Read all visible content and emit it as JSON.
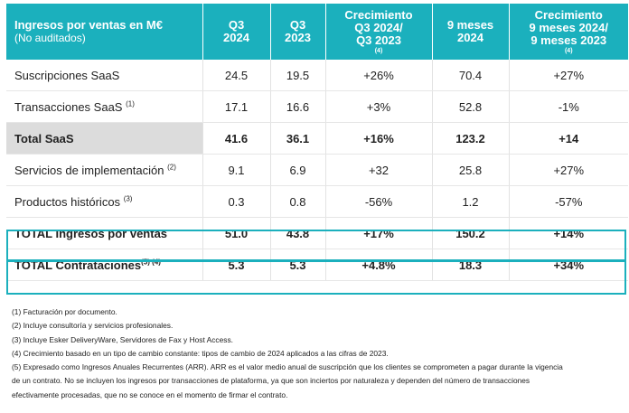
{
  "table": {
    "headers": [
      {
        "main": "Ingresos por ventas en M€",
        "sub": "(No auditados)",
        "note": ""
      },
      {
        "main": "Q3",
        "sub": "2024",
        "note": ""
      },
      {
        "main": "Q3",
        "sub": "2023",
        "note": ""
      },
      {
        "main": "Crecimiento",
        "sub": "Q3 2024/",
        "sub2": "Q3 2023",
        "note": "(4)"
      },
      {
        "main": "9 meses",
        "sub": "2024",
        "note": ""
      },
      {
        "main": "Crecimiento",
        "sub": "9 meses 2024/",
        "sub2": "9 meses 2023",
        "note": "(4)"
      }
    ],
    "rows": [
      {
        "label": "Suscripciones SaaS",
        "note": "",
        "q3_2024": "24.5",
        "q3_2023": "19.5",
        "growth_q3": "+26%",
        "m9_2024": "70.4",
        "growth_9m": "+27%"
      },
      {
        "label": "Transacciones SaaS",
        "note": "(1)",
        "q3_2024": "17.1",
        "q3_2023": "16.6",
        "growth_q3": "+3%",
        "m9_2024": "52.8",
        "growth_9m": "-1%"
      },
      {
        "label": "Total SaaS",
        "note": "",
        "q3_2024": "41.6",
        "q3_2023": "36.1",
        "growth_q3": "+16%",
        "m9_2024": "123.2",
        "growth_9m": "+14"
      },
      {
        "label": "Servicios de implementación",
        "note": "(2)",
        "q3_2024": "9.1",
        "q3_2023": "6.9",
        "growth_q3": "+32",
        "m9_2024": "25.8",
        "growth_9m": "+27%"
      },
      {
        "label": "Productos históricos",
        "note": "(3)",
        "q3_2024": "0.3",
        "q3_2023": "0.8",
        "growth_q3": "-56%",
        "m9_2024": "1.2",
        "growth_9m": "-57%"
      },
      {
        "label": "TOTAL Ingresos por ventas",
        "note": "",
        "q3_2024": "51.0",
        "q3_2023": "43.8",
        "growth_q3": "+17%",
        "m9_2024": "150.2",
        "growth_9m": "+14%"
      },
      {
        "label": "TOTAL Contrataciones",
        "note": "(5) (4)",
        "q3_2024": "5.3",
        "q3_2023": "5.3",
        "growth_q3": "+4.8%",
        "m9_2024": "18.3",
        "growth_9m": "+34%"
      }
    ]
  },
  "footnotes": [
    "(1) Facturación por documento.",
    "(2) Incluye consultoría y servicios profesionales.",
    "(3) Incluye Esker DeliveryWare, Servidores de Fax y Host Access.",
    "(4) Crecimiento basado en un tipo de cambio constante: tipos de cambio de 2024 aplicados a las cifras de 2023.",
    "(5) Expresado como Ingresos Anuales Recurrentes (ARR). ARR es el valor medio anual de suscripción que los clientes se comprometen a pagar durante la vigencia",
    "de un contrato. No se incluyen los ingresos por transacciones de plataforma, ya que son inciertos por naturaleza y dependen del número de transacciones",
    "efectivamente procesadas, que no se conoce en el momento de firmar el contrato."
  ],
  "colors": {
    "header_bg": "#1bb0bd",
    "total_saas_bg": "#dcdcdc",
    "box_border": "#1bb0bd"
  }
}
